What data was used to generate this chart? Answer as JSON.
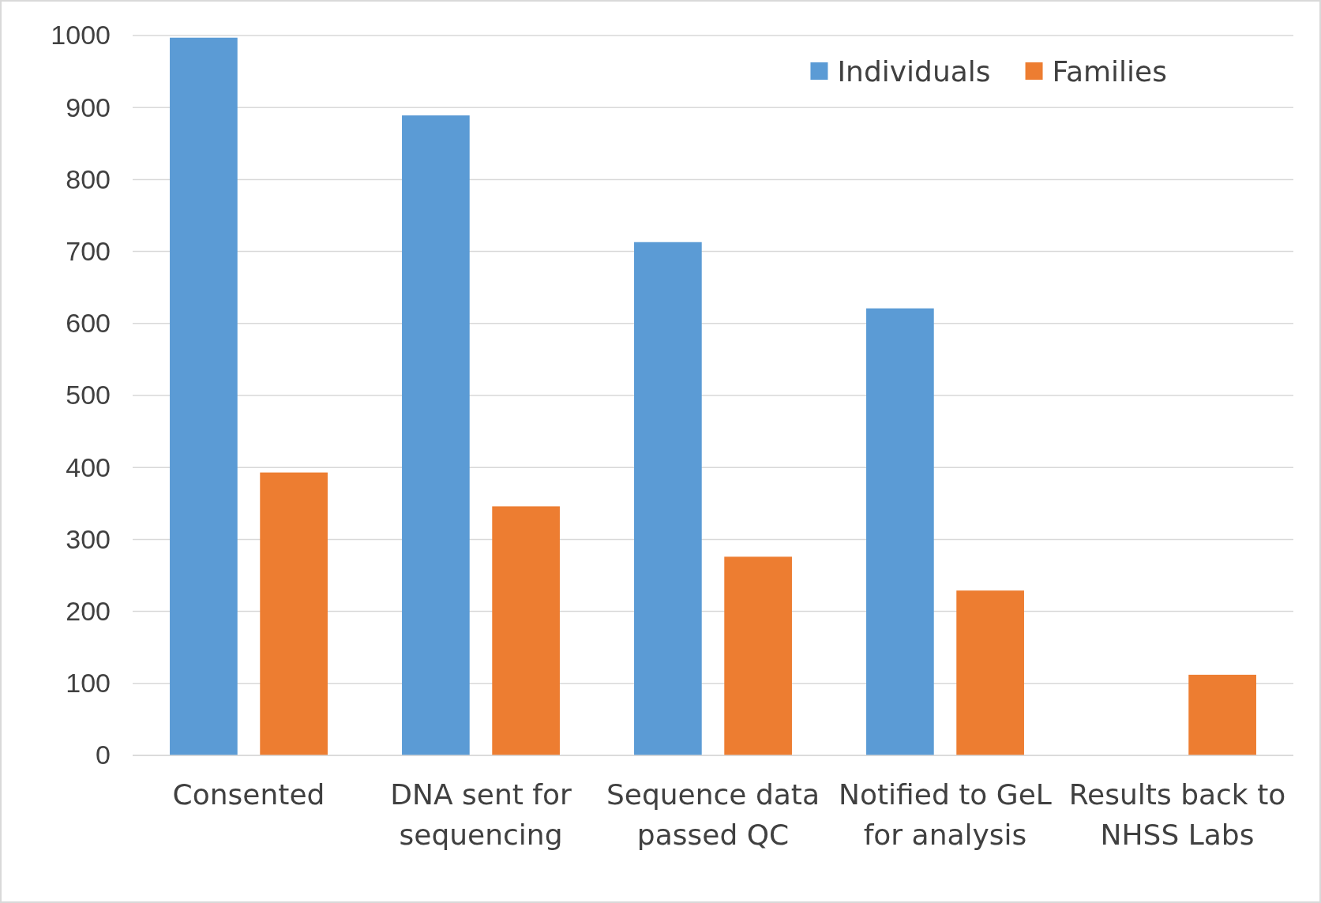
{
  "chart_data": {
    "type": "bar",
    "categories": [
      "Consented",
      "DNA sent for sequencing",
      "Sequence data passed QC",
      "Notified to GeL for analysis",
      "Results back to NHSS Labs"
    ],
    "series": [
      {
        "name": "Individuals",
        "color": "#5b9bd5",
        "values": [
          997,
          889,
          713,
          621,
          0
        ]
      },
      {
        "name": "Families",
        "color": "#ed7d31",
        "values": [
          393,
          346,
          276,
          229,
          112
        ]
      }
    ],
    "ylim": [
      0,
      1000
    ],
    "yticks": [
      0,
      100,
      200,
      300,
      400,
      500,
      600,
      700,
      800,
      900,
      1000
    ],
    "grid": "y",
    "legend": "top right"
  }
}
